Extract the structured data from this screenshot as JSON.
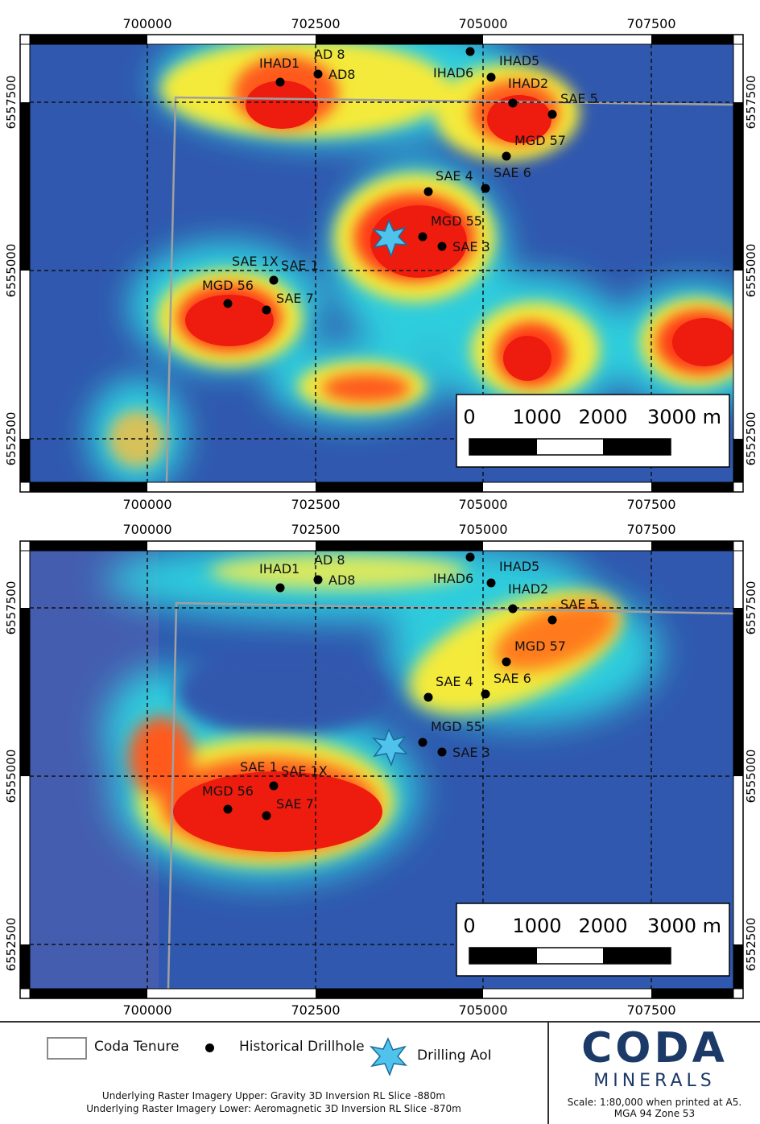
{
  "panels": [
    {
      "id": "upper",
      "x_ticks": [
        "700000",
        "702500",
        "705000",
        "707500"
      ],
      "y_ticks": [
        "6557500",
        "6555000",
        "6552500"
      ],
      "scale_bar": {
        "labels": [
          "0",
          "1000",
          "2000",
          "3000 m"
        ]
      },
      "drillholes": [
        {
          "label": "IHAD1"
        },
        {
          "label": "AD 8"
        },
        {
          "label": "AD8"
        },
        {
          "label": "IHAD6"
        },
        {
          "label": "IHAD5"
        },
        {
          "label": "IHAD2"
        },
        {
          "label": "SAE 5"
        },
        {
          "label": "MGD 57"
        },
        {
          "label": "SAE 6"
        },
        {
          "label": "SAE 4"
        },
        {
          "label": "MGD 55"
        },
        {
          "label": "SAE 3"
        },
        {
          "label": "SAE 1X"
        },
        {
          "label": "SAE 1"
        },
        {
          "label": "MGD 56"
        },
        {
          "label": "SAE 7"
        }
      ]
    },
    {
      "id": "lower",
      "x_ticks": [
        "700000",
        "702500",
        "705000",
        "707500"
      ],
      "y_ticks": [
        "6557500",
        "6555000",
        "6552500"
      ],
      "scale_bar": {
        "labels": [
          "0",
          "1000",
          "2000",
          "3000 m"
        ]
      },
      "drillholes": [
        {
          "label": "IHAD1"
        },
        {
          "label": "AD 8"
        },
        {
          "label": "AD8"
        },
        {
          "label": "IHAD6"
        },
        {
          "label": "IHAD5"
        },
        {
          "label": "IHAD2"
        },
        {
          "label": "SAE 5"
        },
        {
          "label": "MGD 57"
        },
        {
          "label": "SAE 6"
        },
        {
          "label": "SAE 4"
        },
        {
          "label": "MGD 55"
        },
        {
          "label": "SAE 3"
        },
        {
          "label": "SAE 1"
        },
        {
          "label": "SAE 1X"
        },
        {
          "label": "MGD 56"
        },
        {
          "label": "SAE 7"
        }
      ]
    }
  ],
  "legend": {
    "tenure": "Coda Tenure",
    "drillhole": "Historical Drillhole",
    "aoi": "Drilling AoI",
    "note_upper": "Underlying Raster Imagery Upper: Gravity 3D Inversion RL Slice -880m",
    "note_lower": "Underlying Raster Imagery Lower: Aeromagnetic 3D Inversion RL Slice -870m"
  },
  "logo": {
    "name": "CODA",
    "sub": "MINERALS"
  },
  "scale_text": "Scale: 1:80,000 when printed at A5.",
  "projection": "MGA 94 Zone 53",
  "colors": {
    "background": "#2f56ac",
    "tenure": "#9a9a9a",
    "logo": "#1b3a68",
    "aoi": "#4fc3ec"
  }
}
